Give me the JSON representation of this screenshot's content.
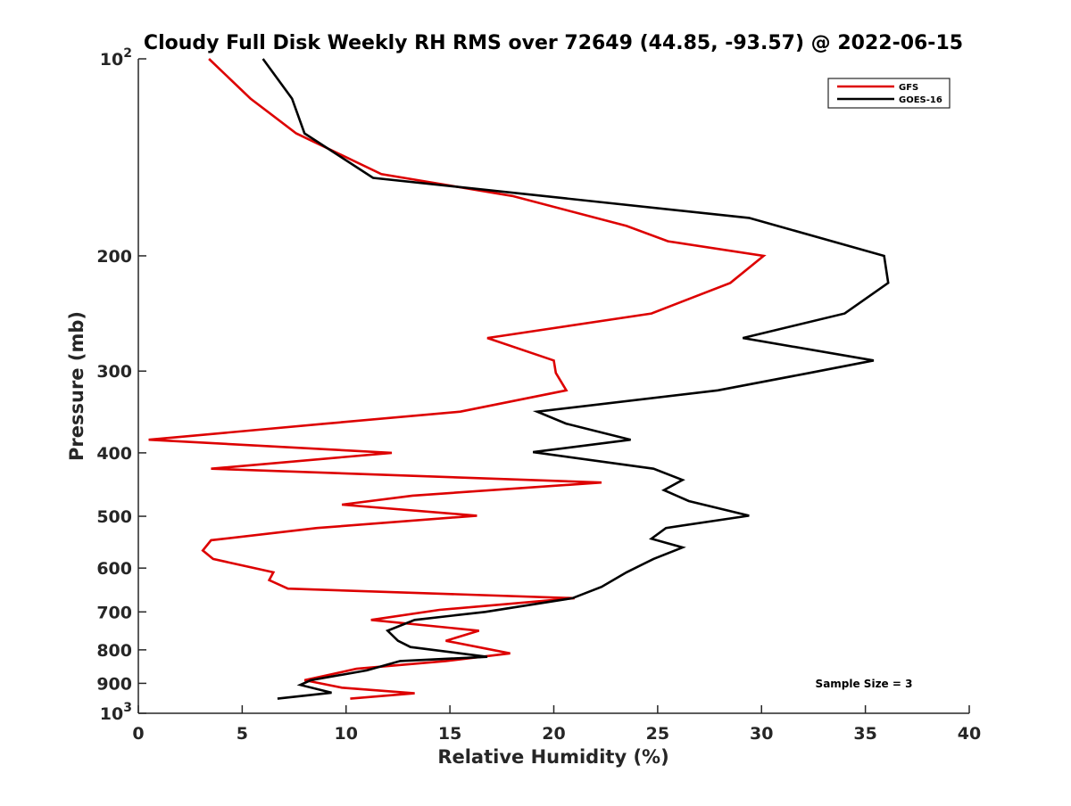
{
  "chart_data": {
    "type": "line",
    "title": "Cloudy Full Disk Weekly RH RMS over 72649 (44.85, -93.57) @ 2022-06-15",
    "xlabel": "Relative Humidity (%)",
    "ylabel": "Pressure (mb)",
    "xlim": [
      0,
      40
    ],
    "ylim": [
      100,
      1000
    ],
    "yscale": "log",
    "y_reversed": true,
    "grid": false,
    "legend_position": "top-right",
    "x_ticks": [
      {
        "value": 0,
        "label": "0"
      },
      {
        "value": 5,
        "label": "5"
      },
      {
        "value": 10,
        "label": "10"
      },
      {
        "value": 15,
        "label": "15"
      },
      {
        "value": 20,
        "label": "20"
      },
      {
        "value": 25,
        "label": "25"
      },
      {
        "value": 30,
        "label": "30"
      },
      {
        "value": 35,
        "label": "35"
      },
      {
        "value": 40,
        "label": "40"
      }
    ],
    "y_ticks": [
      {
        "value": 100,
        "base": "10",
        "exp": "2"
      },
      {
        "value": 200,
        "label": "200"
      },
      {
        "value": 300,
        "label": "300"
      },
      {
        "value": 400,
        "label": "400"
      },
      {
        "value": 500,
        "label": "500"
      },
      {
        "value": 600,
        "label": "600"
      },
      {
        "value": 700,
        "label": "700"
      },
      {
        "value": 800,
        "label": "800"
      },
      {
        "value": 900,
        "label": "900"
      },
      {
        "value": 1000,
        "base": "10",
        "exp": "3"
      }
    ],
    "annotation": "Sample Size = 3",
    "series": [
      {
        "name": "GFS",
        "color": "#dd0000",
        "points": [
          [
            3.4,
            100
          ],
          [
            5.4,
            115
          ],
          [
            7.6,
            130
          ],
          [
            11.7,
            150
          ],
          [
            18.0,
            162
          ],
          [
            23.5,
            180
          ],
          [
            25.5,
            190
          ],
          [
            30.1,
            200
          ],
          [
            28.5,
            220
          ],
          [
            24.7,
            245
          ],
          [
            16.8,
            267
          ],
          [
            20.0,
            289
          ],
          [
            20.1,
            302
          ],
          [
            20.6,
            321
          ],
          [
            15.5,
            346
          ],
          [
            9.0,
            361
          ],
          [
            0.5,
            382
          ],
          [
            12.2,
            400
          ],
          [
            3.5,
            423
          ],
          [
            22.3,
            444
          ],
          [
            13.2,
            465
          ],
          [
            9.8,
            480
          ],
          [
            16.3,
            499
          ],
          [
            8.6,
            521
          ],
          [
            3.5,
            544
          ],
          [
            3.1,
            564
          ],
          [
            3.6,
            581
          ],
          [
            6.5,
            609
          ],
          [
            6.3,
            626
          ],
          [
            7.2,
            645
          ],
          [
            21.0,
            667
          ],
          [
            14.5,
            695
          ],
          [
            11.2,
            720
          ],
          [
            16.4,
            748
          ],
          [
            14.8,
            775
          ],
          [
            17.9,
            810
          ],
          [
            14.8,
            832
          ],
          [
            10.5,
            855
          ],
          [
            8.0,
            890
          ],
          [
            9.8,
            914
          ],
          [
            13.3,
            932
          ],
          [
            10.2,
            950
          ]
        ]
      },
      {
        "name": "GOES-16",
        "color": "#000000",
        "points": [
          [
            6.0,
            100
          ],
          [
            7.4,
            115
          ],
          [
            8.0,
            130
          ],
          [
            11.3,
            152
          ],
          [
            29.4,
            175
          ],
          [
            35.9,
            200
          ],
          [
            36.1,
            220
          ],
          [
            34.0,
            245
          ],
          [
            29.1,
            267
          ],
          [
            35.4,
            289
          ],
          [
            32.3,
            302
          ],
          [
            27.9,
            321
          ],
          [
            19.2,
            346
          ],
          [
            20.6,
            361
          ],
          [
            23.7,
            382
          ],
          [
            19.0,
            399
          ],
          [
            24.8,
            423
          ],
          [
            26.2,
            440
          ],
          [
            25.3,
            456
          ],
          [
            26.5,
            474
          ],
          [
            29.4,
            499
          ],
          [
            25.4,
            521
          ],
          [
            24.7,
            541
          ],
          [
            26.2,
            558
          ],
          [
            24.8,
            581
          ],
          [
            23.5,
            609
          ],
          [
            22.3,
            641
          ],
          [
            20.9,
            667
          ],
          [
            16.7,
            700
          ],
          [
            13.3,
            720
          ],
          [
            12.0,
            748
          ],
          [
            12.5,
            775
          ],
          [
            13.1,
            792
          ],
          [
            16.8,
            820
          ],
          [
            12.6,
            832
          ],
          [
            11.0,
            860
          ],
          [
            8.3,
            890
          ],
          [
            7.8,
            905
          ],
          [
            9.3,
            930
          ],
          [
            6.7,
            950
          ]
        ]
      }
    ]
  }
}
